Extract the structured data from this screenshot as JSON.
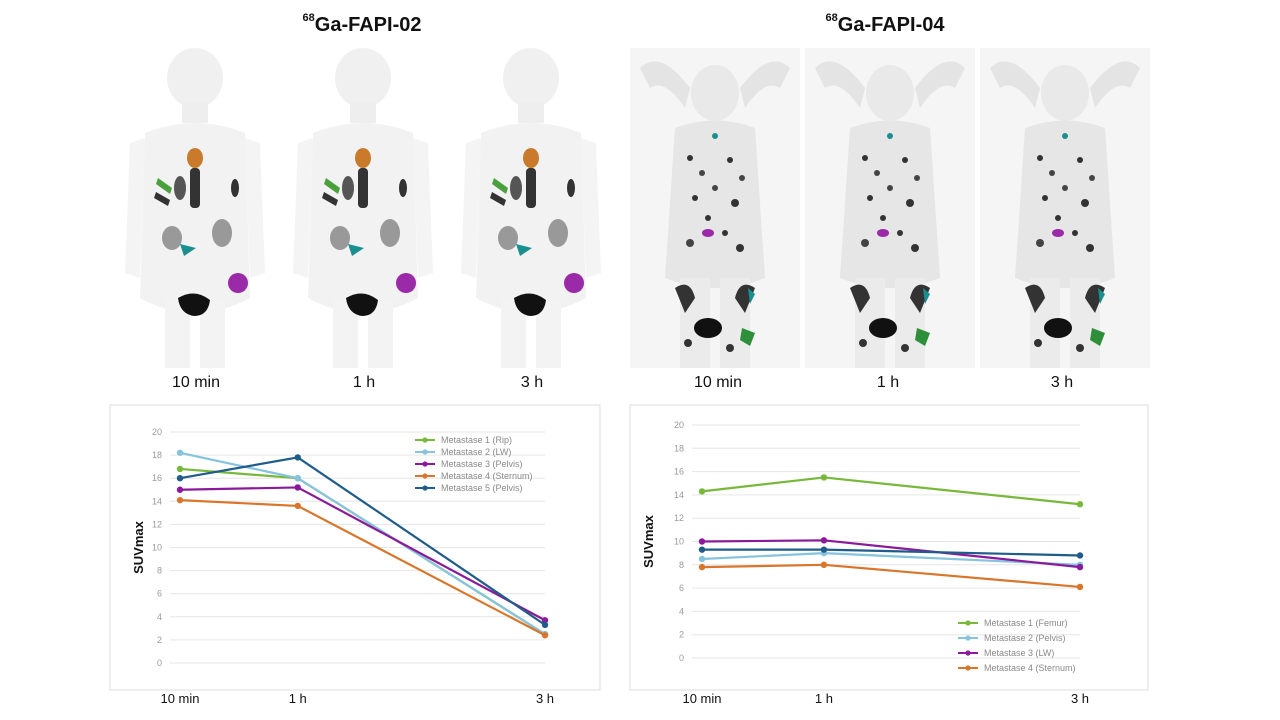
{
  "panels": [
    {
      "title_sup": "68",
      "title_main": "Ga-FAPI-02",
      "time_labels": [
        "10 min",
        "1 h",
        "3 h"
      ]
    },
    {
      "title_sup": "68",
      "title_main": "Ga-FAPI-04",
      "time_labels": [
        "10 min",
        "1 h",
        "3 h"
      ]
    }
  ],
  "colors": {
    "green": "#78b83a",
    "lightblue": "#86c3dc",
    "purple": "#8b1a9a",
    "orange": "#d9762b",
    "darkblue": "#1f5c8a",
    "grid": "#e6e6e6",
    "frame": "#dcdcdc"
  },
  "chart_data": [
    {
      "type": "line",
      "categories": [
        "10 min",
        "1 h",
        "3 h"
      ],
      "x": [
        0,
        1,
        3.1
      ],
      "ylabel": "SUVmax",
      "ylim": [
        0,
        20
      ],
      "yticks": [
        0,
        2,
        4,
        6,
        8,
        10,
        12,
        14,
        16,
        18,
        20
      ],
      "grid": true,
      "legend": "top-right",
      "series": [
        {
          "name": "Metastase 1 (Rip)",
          "color": "green",
          "values": [
            16.8,
            16.0,
            2.5
          ]
        },
        {
          "name": "Metastase 2 (LW)",
          "color": "lightblue",
          "values": [
            18.2,
            16.0,
            2.5
          ]
        },
        {
          "name": "Metastase 3 (Pelvis)",
          "color": "purple",
          "values": [
            15.0,
            15.2,
            3.7
          ]
        },
        {
          "name": "Metastase 4 (Sternum)",
          "color": "orange",
          "values": [
            14.1,
            13.6,
            2.4
          ]
        },
        {
          "name": "Metastase 5 (Pelvis)",
          "color": "darkblue",
          "values": [
            16.0,
            17.8,
            3.3
          ]
        }
      ]
    },
    {
      "type": "line",
      "categories": [
        "10 min",
        "1 h",
        "3 h"
      ],
      "x": [
        0,
        1,
        3.1
      ],
      "ylabel": "SUVmax",
      "ylim": [
        0,
        20
      ],
      "yticks": [
        0,
        2,
        4,
        6,
        8,
        10,
        12,
        14,
        16,
        18,
        20
      ],
      "grid": true,
      "legend": "bottom-right",
      "series": [
        {
          "name": "Metastase 1 (Femur)",
          "color": "green",
          "values": [
            14.3,
            15.5,
            13.2
          ]
        },
        {
          "name": "Metastase 2 (Pelvis)",
          "color": "lightblue",
          "values": [
            8.5,
            9.0,
            8.0
          ]
        },
        {
          "name": "Metastase 3 (LW)",
          "color": "purple",
          "values": [
            10.0,
            10.1,
            7.8
          ]
        },
        {
          "name": "Metastase 4 (Sternum)",
          "color": "orange",
          "values": [
            7.8,
            8.0,
            6.1
          ]
        },
        {
          "name": "",
          "color": "darkblue",
          "values": [
            9.3,
            9.3,
            8.8
          ]
        }
      ]
    }
  ]
}
